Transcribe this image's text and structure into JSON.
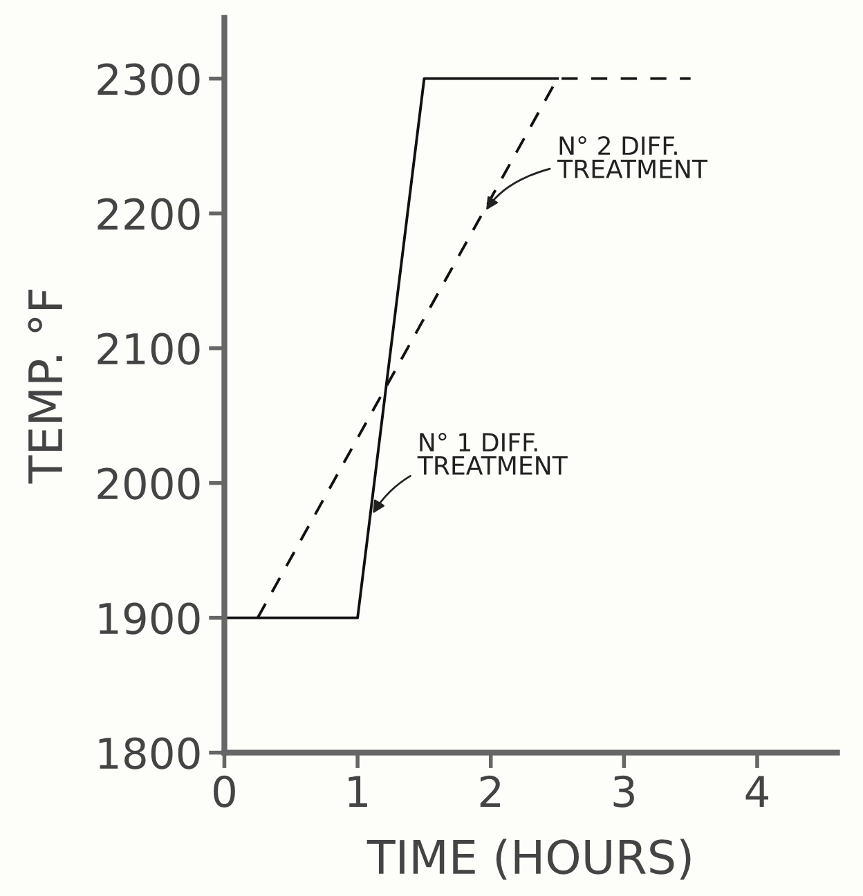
{
  "chart_data": {
    "type": "line",
    "xlabel": "TIME (HOURS)",
    "ylabel": "TEMP. °F",
    "xlim": [
      0,
      4.6
    ],
    "ylim": [
      1800,
      2345
    ],
    "xticks": [
      0,
      1,
      2,
      3,
      4
    ],
    "yticks": [
      1800,
      1900,
      2000,
      2100,
      2200,
      2300
    ],
    "grid": false,
    "legend": false,
    "marker": "none",
    "series": [
      {
        "x": [
          0,
          1,
          1.5,
          2.5
        ],
        "values": [
          1900,
          1900,
          2300,
          2300
        ],
        "color": "#111111",
        "line_style": "solid"
      },
      {
        "x": [
          0.25,
          2.5,
          3.5
        ],
        "values": [
          1900,
          2300,
          2300
        ],
        "color": "#111111",
        "line_style": "dashed"
      }
    ],
    "annotations": [
      {
        "text": "N° 2 DIFF.\nTREATMENT",
        "x": 1.95,
        "y": 2200
      },
      {
        "text": "N° 1 DIFF.\nTREATMENT",
        "x": 1.1,
        "y": 1975
      }
    ]
  }
}
